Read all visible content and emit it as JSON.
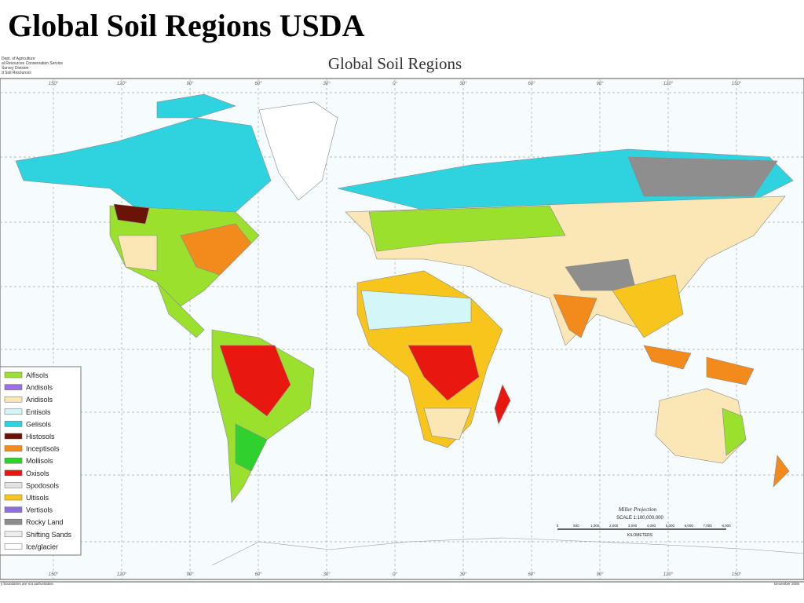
{
  "header": {
    "title": "Global Soil Regions USDA"
  },
  "map": {
    "title": "Global Soil Regions",
    "agency": [
      "Dept. of Agriculture",
      "al Resources Conservation Service",
      "Survey Division",
      "d Soil Resources"
    ],
    "longitude_labels": [
      "150°",
      "120°",
      "90°",
      "60°",
      "30°",
      "0°",
      "30°",
      "60°",
      "90°",
      "120°",
      "150°"
    ],
    "legend": [
      {
        "label": "Alfisols",
        "color": "#9be02d"
      },
      {
        "label": "Andisols",
        "color": "#9a6fe8"
      },
      {
        "label": "Aridisols",
        "color": "#fbe7b5"
      },
      {
        "label": "Entisols",
        "color": "#d3f6f8"
      },
      {
        "label": "Gelisols",
        "color": "#2fd3e0"
      },
      {
        "label": "Histosols",
        "color": "#6a1407"
      },
      {
        "label": "Inceptisols",
        "color": "#f28a1c"
      },
      {
        "label": "Mollisols",
        "color": "#2fd12f"
      },
      {
        "label": "Oxisols",
        "color": "#e8170f"
      },
      {
        "label": "Spodosols",
        "color": "#e2e2e2"
      },
      {
        "label": "Ultisols",
        "color": "#f7c51b"
      },
      {
        "label": "Vertisols",
        "color": "#8d6fe0"
      },
      {
        "label": "Rocky Land",
        "color": "#8e8e8e"
      },
      {
        "label": "Shifting Sands",
        "color": "#eeeeee"
      },
      {
        "label": "Ice/glacier",
        "color": "#ffffff"
      }
    ],
    "projection": "Miller Projection",
    "scale": "SCALE 1:100,000,000",
    "scale_ticks": [
      "0",
      "500",
      "1,000",
      "2,000",
      "3,000",
      "4,000",
      "5,000",
      "6,000",
      "7,000",
      "8,000"
    ],
    "scale_unit": "KILOMETERS",
    "footer_note": "y boundaries are not authoritative.",
    "date": "December 2005"
  }
}
